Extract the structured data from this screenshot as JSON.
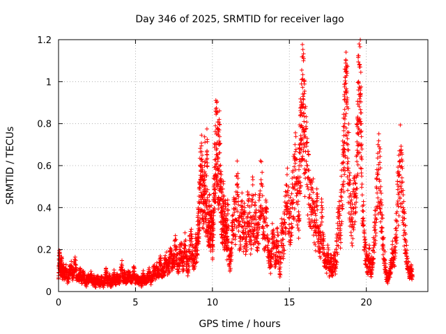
{
  "chart_data": {
    "type": "scatter",
    "title": "Day 346 of 2025, SRMTID for receiver lago",
    "xlabel": "GPS time / hours",
    "ylabel": "SRMTID / TECUs",
    "xlim": [
      0,
      24
    ],
    "ylim": [
      0,
      1.2
    ],
    "xticks": [
      0,
      5,
      10,
      15,
      20
    ],
    "xtick_labels": [
      "0",
      "5",
      "10",
      "15",
      "20"
    ],
    "yticks": [
      0,
      0.2,
      0.4,
      0.6,
      0.8,
      1.0,
      1.2
    ],
    "ytick_labels": [
      "0",
      "0.2",
      "0.4",
      "0.6",
      "0.8",
      "1",
      "1.2"
    ],
    "grid": true,
    "marker": "+",
    "series_color": "#ff0000",
    "series": [
      {
        "name": "SRMTID",
        "x": [
          0.0,
          0.05,
          0.1,
          0.15,
          0.2,
          0.25,
          0.3,
          0.4,
          0.5,
          0.6,
          0.7,
          0.8,
          0.9,
          1.0,
          1.1,
          1.2,
          1.3,
          1.4,
          1.5,
          1.6,
          1.7,
          1.8,
          1.9,
          2.0,
          2.1,
          2.2,
          2.3,
          2.4,
          2.5,
          2.6,
          2.7,
          2.8,
          2.9,
          3.0,
          3.1,
          3.2,
          3.3,
          3.4,
          3.5,
          3.6,
          3.7,
          3.8,
          3.9,
          4.0,
          4.1,
          4.2,
          4.3,
          4.4,
          4.5,
          4.6,
          4.7,
          4.8,
          4.9,
          5.0,
          5.1,
          5.2,
          5.3,
          5.4,
          5.5,
          5.6,
          5.7,
          5.8,
          5.9,
          6.0,
          6.1,
          6.2,
          6.3,
          6.4,
          6.5,
          6.6,
          6.7,
          6.8,
          6.9,
          7.0,
          7.1,
          7.2,
          7.3,
          7.4,
          7.5,
          7.6,
          7.7,
          7.8,
          7.9,
          8.0,
          8.1,
          8.2,
          8.3,
          8.4,
          8.5,
          8.6,
          8.7,
          8.8,
          8.9,
          9.0,
          9.05,
          9.1,
          9.15,
          9.2,
          9.25,
          9.3,
          9.35,
          9.4,
          9.45,
          9.5,
          9.55,
          9.6,
          9.65,
          9.7,
          9.75,
          9.8,
          9.85,
          9.9,
          9.95,
          10.0,
          10.05,
          10.1,
          10.15,
          10.2,
          10.25,
          10.3,
          10.35,
          10.4,
          10.45,
          10.5,
          10.55,
          10.6,
          10.65,
          10.7,
          10.75,
          10.8,
          10.85,
          10.9,
          10.95,
          11.0,
          11.1,
          11.2,
          11.3,
          11.4,
          11.5,
          11.6,
          11.7,
          11.8,
          11.9,
          12.0,
          12.1,
          12.2,
          12.3,
          12.4,
          12.5,
          12.6,
          12.7,
          12.8,
          12.9,
          13.0,
          13.1,
          13.2,
          13.3,
          13.4,
          13.5,
          13.6,
          13.7,
          13.8,
          13.9,
          14.0,
          14.1,
          14.2,
          14.3,
          14.4,
          14.5,
          14.6,
          14.7,
          14.8,
          14.9,
          15.0,
          15.1,
          15.2,
          15.3,
          15.4,
          15.5,
          15.6,
          15.65,
          15.7,
          15.75,
          15.8,
          15.85,
          15.9,
          15.95,
          16.0,
          16.1,
          16.2,
          16.3,
          16.4,
          16.5,
          16.6,
          16.7,
          16.8,
          16.9,
          17.0,
          17.1,
          17.2,
          17.3,
          17.4,
          17.5,
          17.6,
          17.7,
          17.8,
          17.9,
          18.0,
          18.1,
          18.2,
          18.3,
          18.4,
          18.5,
          18.55,
          18.6,
          18.65,
          18.7,
          18.75,
          18.8,
          18.9,
          19.0,
          19.1,
          19.2,
          19.3,
          19.4,
          19.45,
          19.5,
          19.55,
          19.6,
          19.65,
          19.7,
          19.8,
          19.9,
          20.0,
          20.1,
          20.2,
          20.3,
          20.4,
          20.5,
          20.6,
          20.7,
          20.8,
          20.9,
          21.0,
          21.1,
          21.2,
          21.3,
          21.4,
          21.5,
          21.6,
          21.7,
          21.8,
          21.9,
          22.0,
          22.1,
          22.2,
          22.3,
          22.4,
          22.5,
          22.6,
          22.7,
          22.8,
          22.9,
          23.0
        ],
        "y": [
          0.06,
          0.17,
          0.12,
          0.09,
          0.15,
          0.08,
          0.11,
          0.07,
          0.1,
          0.05,
          0.09,
          0.12,
          0.08,
          0.1,
          0.13,
          0.07,
          0.06,
          0.09,
          0.05,
          0.08,
          0.06,
          0.04,
          0.07,
          0.05,
          0.08,
          0.04,
          0.06,
          0.03,
          0.07,
          0.05,
          0.04,
          0.06,
          0.03,
          0.05,
          0.09,
          0.04,
          0.07,
          0.03,
          0.06,
          0.08,
          0.04,
          0.07,
          0.05,
          0.06,
          0.13,
          0.05,
          0.08,
          0.04,
          0.07,
          0.09,
          0.05,
          0.06,
          0.11,
          0.04,
          0.07,
          0.05,
          0.06,
          0.04,
          0.08,
          0.05,
          0.06,
          0.07,
          0.09,
          0.05,
          0.07,
          0.1,
          0.08,
          0.11,
          0.09,
          0.13,
          0.1,
          0.08,
          0.12,
          0.15,
          0.11,
          0.14,
          0.18,
          0.12,
          0.16,
          0.21,
          0.15,
          0.13,
          0.19,
          0.17,
          0.12,
          0.22,
          0.16,
          0.1,
          0.19,
          0.25,
          0.18,
          0.14,
          0.21,
          0.18,
          0.28,
          0.34,
          0.42,
          0.51,
          0.6,
          0.55,
          0.45,
          0.38,
          0.48,
          0.57,
          0.43,
          0.33,
          0.67,
          0.29,
          0.24,
          0.37,
          0.31,
          0.27,
          0.35,
          0.22,
          0.32,
          0.45,
          0.55,
          0.63,
          0.75,
          0.71,
          0.62,
          0.58,
          0.66,
          0.53,
          0.44,
          0.38,
          0.3,
          0.42,
          0.36,
          0.26,
          0.33,
          0.28,
          0.22,
          0.37,
          0.12,
          0.18,
          0.31,
          0.43,
          0.27,
          0.51,
          0.35,
          0.24,
          0.39,
          0.28,
          0.33,
          0.22,
          0.41,
          0.31,
          0.26,
          0.44,
          0.29,
          0.36,
          0.21,
          0.32,
          0.48,
          0.51,
          0.3,
          0.27,
          0.35,
          0.22,
          0.18,
          0.12,
          0.25,
          0.21,
          0.15,
          0.24,
          0.19,
          0.08,
          0.28,
          0.22,
          0.33,
          0.4,
          0.48,
          0.3,
          0.36,
          0.42,
          0.5,
          0.58,
          0.47,
          0.38,
          0.52,
          0.66,
          0.72,
          0.79,
          0.88,
          0.93,
          0.81,
          0.7,
          0.62,
          0.54,
          0.45,
          0.38,
          0.49,
          0.33,
          0.28,
          0.41,
          0.25,
          0.19,
          0.35,
          0.22,
          0.15,
          0.12,
          0.18,
          0.1,
          0.14,
          0.09,
          0.17,
          0.12,
          0.22,
          0.35,
          0.28,
          0.45,
          0.58,
          0.68,
          0.8,
          0.95,
          1.05,
          0.88,
          0.7,
          0.52,
          0.4,
          0.32,
          0.45,
          0.38,
          0.65,
          0.82,
          1.0,
          1.07,
          0.94,
          0.76,
          0.55,
          0.35,
          0.21,
          0.15,
          0.12,
          0.18,
          0.1,
          0.14,
          0.22,
          0.35,
          0.47,
          0.58,
          0.48,
          0.35,
          0.22,
          0.15,
          0.08,
          0.05,
          0.09,
          0.12,
          0.18,
          0.15,
          0.24,
          0.38,
          0.5,
          0.62,
          0.52,
          0.4,
          0.28,
          0.18,
          0.12,
          0.08,
          0.1,
          0.07
        ]
      }
    ],
    "extra_points": [
      {
        "x": 9.2,
        "y": 0.6
      },
      {
        "x": 10.4,
        "y": 0.76
      },
      {
        "x": 18.6,
        "y": 1.06
      },
      {
        "x": 19.6,
        "y": 1.07
      },
      {
        "x": 20.9,
        "y": 0.68
      },
      {
        "x": 22.3,
        "y": 0.63
      }
    ]
  }
}
